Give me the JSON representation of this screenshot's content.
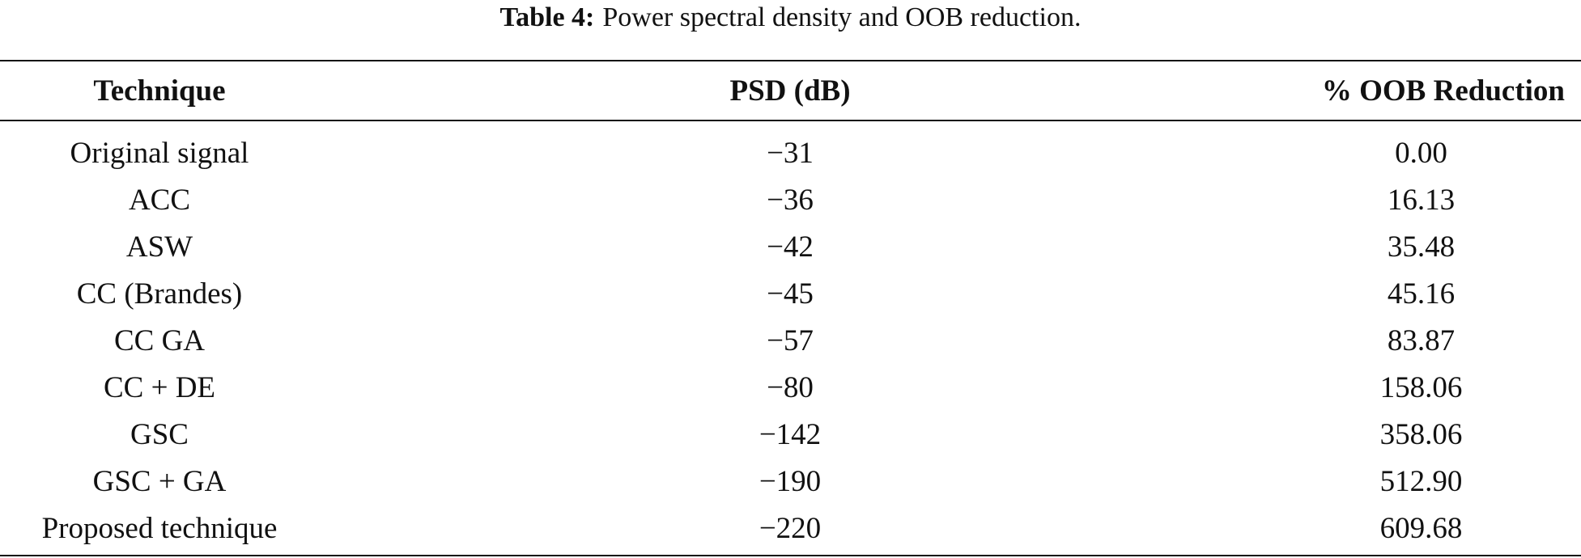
{
  "caption": {
    "label": "Table 4:",
    "text": "Power spectral density and OOB reduction."
  },
  "table": {
    "header": [
      "Technique",
      "PSD (dB)",
      "% OOB Reduction"
    ],
    "rows": [
      [
        "Original signal",
        "−31",
        "0.00"
      ],
      [
        "ACC",
        "−36",
        "16.13"
      ],
      [
        "ASW",
        "−42",
        "35.48"
      ],
      [
        "CC (Brandes)",
        "−45",
        "45.16"
      ],
      [
        "CC GA",
        "−57",
        "83.87"
      ],
      [
        "CC + DE",
        "−80",
        "158.06"
      ],
      [
        "GSC",
        "−142",
        "358.06"
      ],
      [
        "GSC + GA",
        "−190",
        "512.90"
      ],
      [
        "Proposed technique",
        "−220",
        "609.68"
      ]
    ]
  }
}
